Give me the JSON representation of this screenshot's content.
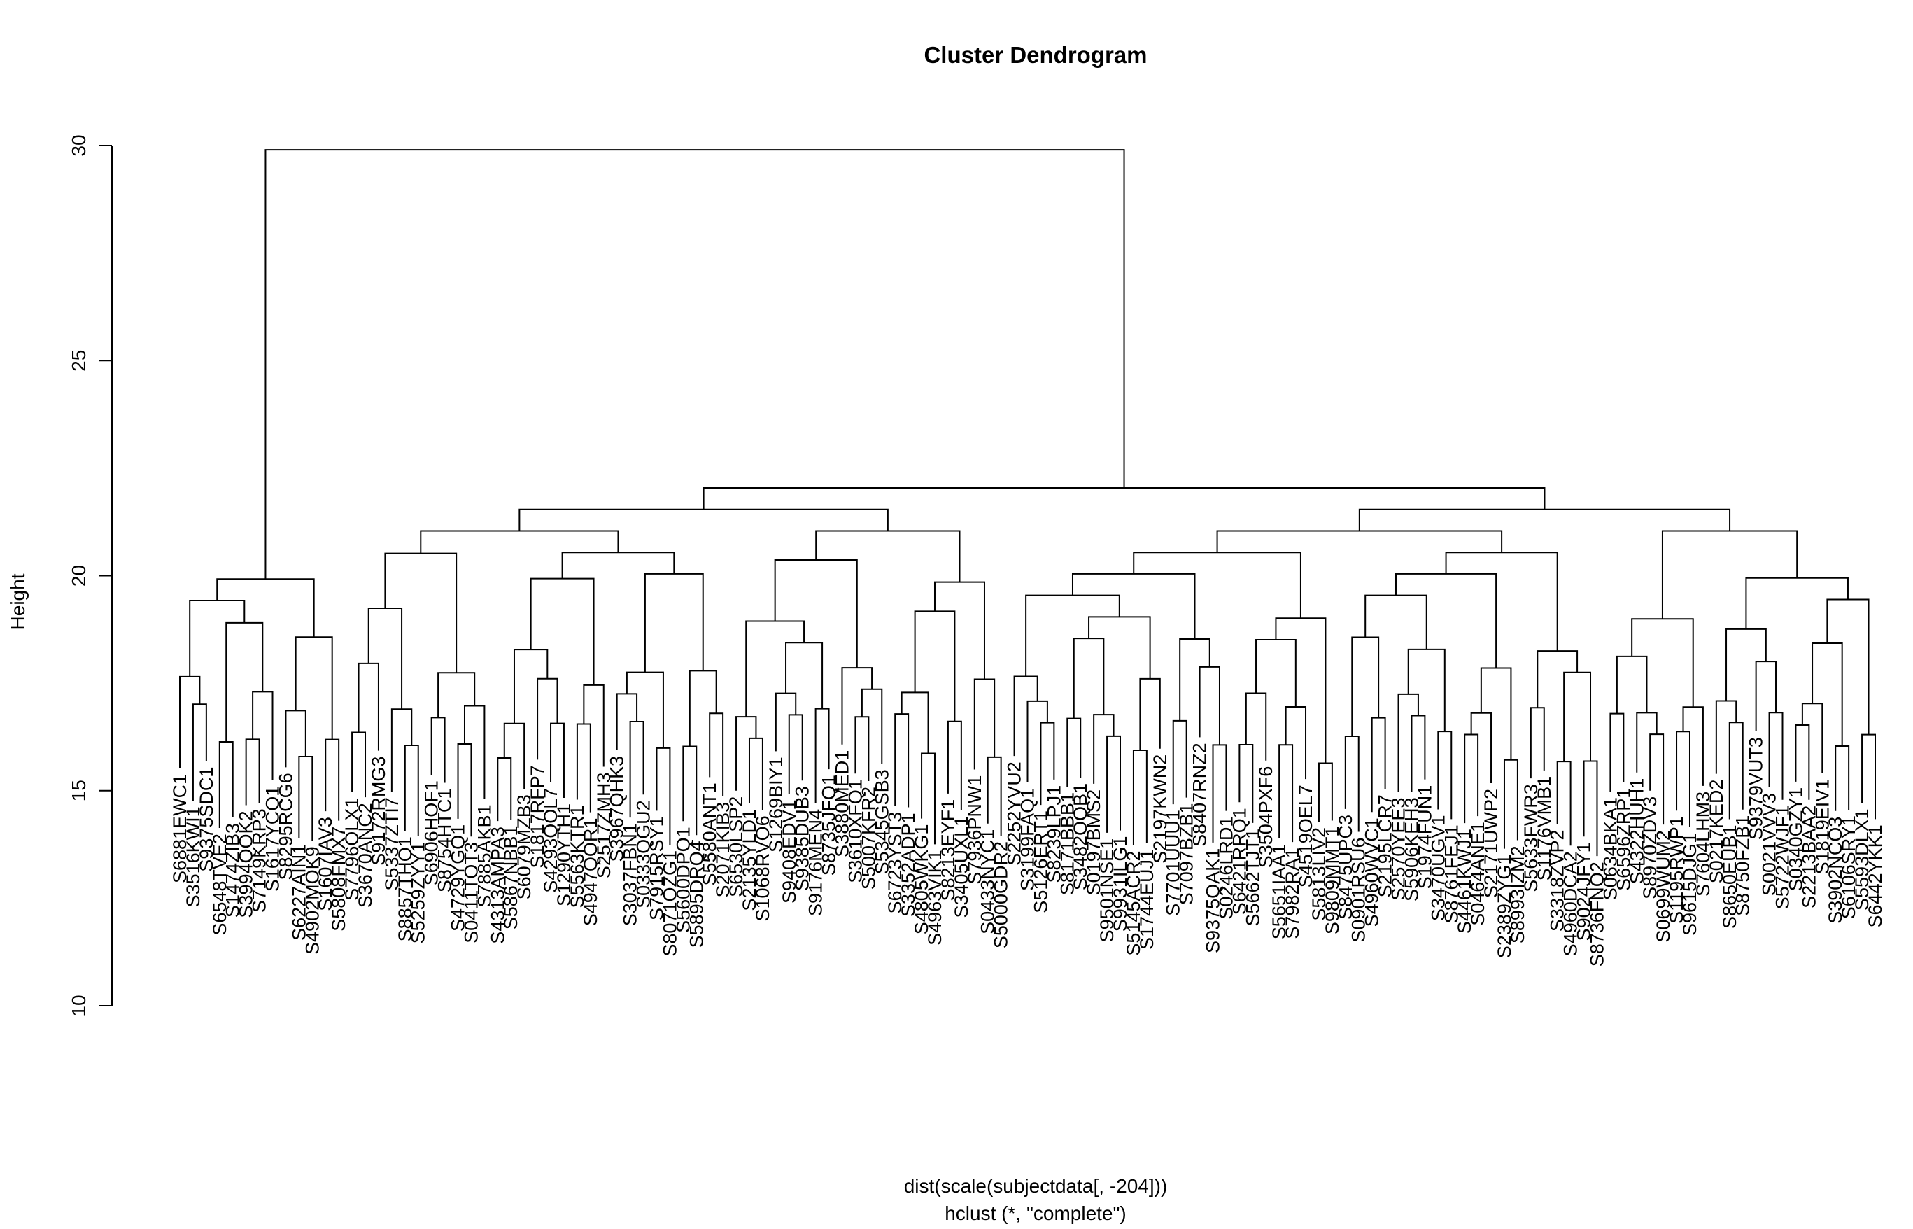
{
  "chart_data": {
    "type": "dendrogram",
    "title": "Cluster Dendrogram",
    "ylabel": "Height",
    "xlabel_lines": [
      "dist(scale(subjectdata[, -204]))",
      "hclust (*, \"complete\")"
    ],
    "ylim": [
      10,
      30
    ],
    "yticks": [
      10,
      15,
      20,
      25,
      30
    ],
    "leaves": [
      "S6881EWC1",
      "S3516KWI1",
      "S9375SDC1",
      "S6548TVE2",
      "S1474ZIB3",
      "S3994QOK2",
      "S7149KRP3",
      "S1617YCQ1",
      "S8295RCG6",
      "S6227AIN1",
      "S4902MOK9",
      "S1607IAV3",
      "S5808FMX7",
      "S7796OLX1",
      "S3670ANC2",
      "S9172RMG3",
      "S5337ZTI7",
      "S8857THO1",
      "S5259ZYY1",
      "S6906HOF1",
      "S8754HTC1",
      "S4729YGQ1",
      "S0411TOT3",
      "S7885AKB1",
      "S4313AMPA3",
      "S5867NBB1",
      "S6079MZB3",
      "S1817RFP7",
      "S4293QOL7",
      "S1290YTH1",
      "S5563KTR1",
      "S4947QOR1",
      "S2517ZMH3",
      "S3967QHK3",
      "S3037FBN1",
      "S0333QGU2",
      "S7915RSY1",
      "S8071OZG1",
      "S5600DPQ1",
      "S5895DRQ4",
      "S5580ANT1",
      "S2071KIB3",
      "S6530LSP2",
      "S2135YLD1",
      "S1068RVO6",
      "S1269BIY1",
      "S9408EDV1",
      "S9385DUB3",
      "S9176MEN4",
      "S8735JFQ1",
      "S3880MED1",
      "S3610XFQ1",
      "S5007KFR2",
      "S5345GSB3",
      "S6723YST3",
      "S3352ADP1",
      "S4805WKG1",
      "S4963VIK1",
      "S8213EYF1",
      "S3405UXL1",
      "S7936PNW1",
      "S0433NYC1",
      "S5000GDR2",
      "S2252YVU2",
      "S3199FAQ1",
      "S5126ERT1",
      "S8239LPJ1",
      "S8171BBB1",
      "S3482OQB1",
      "S0197BMS2",
      "S9501NSE1",
      "S9931ILG1",
      "S5145ACR2",
      "S1744EUJ1",
      "S2197KWN2",
      "S7701UUU1",
      "S7097BZB1",
      "S8407RNZ2",
      "S9375QAK1",
      "S0246LRD1",
      "S6421RRQ1",
      "S5662TJT1",
      "S3504PXF6",
      "S5651IAA1",
      "S7982RA1",
      "S4519OEL7",
      "S5813LIV2",
      "S9809MMT1",
      "S8475UPC3",
      "S0901RSU6",
      "S4960WVC1",
      "S2195LCR7",
      "S2570YEE3",
      "S5906KEH3",
      "S1974FUN1",
      "S3470UGV1",
      "S8761FEJ1",
      "S4461KWJ1",
      "S0464ANE1",
      "S2171UWP2",
      "S2389ZYG1",
      "S8993IZM2",
      "S5633FWR3",
      "S1176VMB1",
      "S3318ZVP2",
      "S4960DCA2",
      "S9024JFY1",
      "S8736FNQ2",
      "S0634BKA1",
      "S6596ZRP1",
      "S4322HUH1",
      "S8970ZDV3",
      "S0699WUM2",
      "S1195RWP1",
      "S9615DJG1",
      "S7604LHM3",
      "S0217KED2",
      "S8650EUB1",
      "S8750FZB1",
      "S9379VUT3",
      "S0021VVV3",
      "S5722WJF1",
      "S0340GZY1",
      "S2213BAA2",
      "S1819EIV1",
      "S3902NCO3",
      "S6106SRY1",
      "S5593DLX1",
      "S6442YKK1"
    ]
  }
}
